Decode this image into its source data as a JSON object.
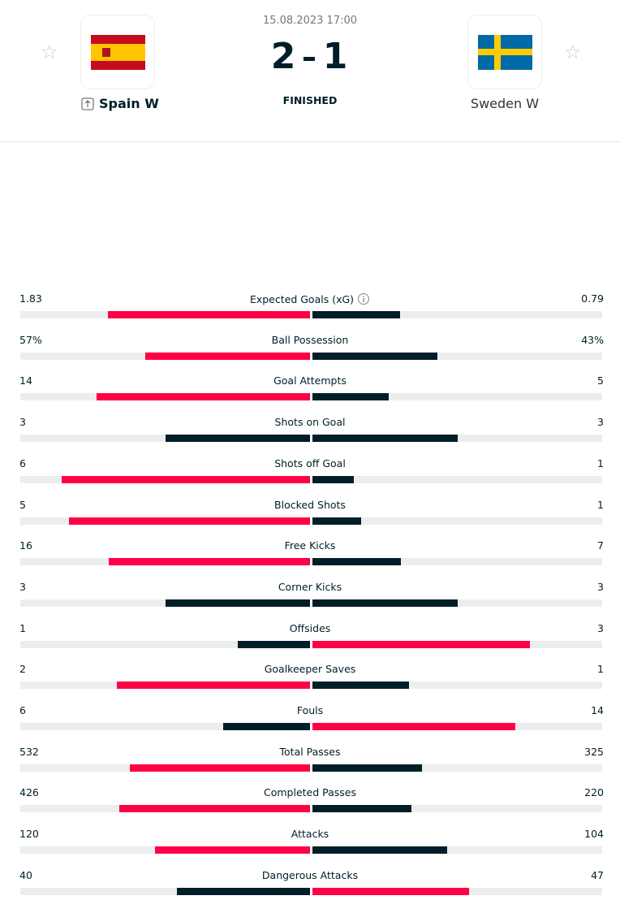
{
  "header": {
    "date": "15.08.2023 17:00",
    "home_team": "Spain W",
    "away_team": "Sweden W",
    "home_score": 2,
    "away_score": 1,
    "status": "FINISHED"
  },
  "stats": [
    {
      "label": "Expected Goals (xG)",
      "home": 1.83,
      "away": 0.79
    },
    {
      "label": "Ball Possession",
      "home": {
        "value": 57,
        "label": "57%"
      },
      "away": {
        "value": 43,
        "label": "43%"
      }
    },
    {
      "label": "Goal Attempts",
      "home": 14,
      "away": 5
    },
    {
      "label": "Shots on Goal",
      "home": 3,
      "away": 3
    },
    {
      "label": "Shots off Goal",
      "home": 6,
      "away": 1
    },
    {
      "label": "Blocked Shots",
      "home": 5,
      "away": 1
    },
    {
      "label": "Free Kicks",
      "home": 16,
      "away": 7
    },
    {
      "label": "Corner Kicks",
      "home": 3,
      "away": 3
    },
    {
      "label": "Offsides",
      "home": 1,
      "away": 3
    },
    {
      "label": "Goalkeeper Saves",
      "home": 2,
      "away": 1
    },
    {
      "label": "Fouls",
      "home": 6,
      "away": 14
    },
    {
      "label": "Total Passes",
      "home": 532,
      "away": 325
    },
    {
      "label": "Completed Passes",
      "home": 426,
      "away": 220
    },
    {
      "label": "Attacks",
      "home": 120,
      "away": 104
    },
    {
      "label": "Dangerous Attacks",
      "home": 40,
      "away": 47
    }
  ]
}
